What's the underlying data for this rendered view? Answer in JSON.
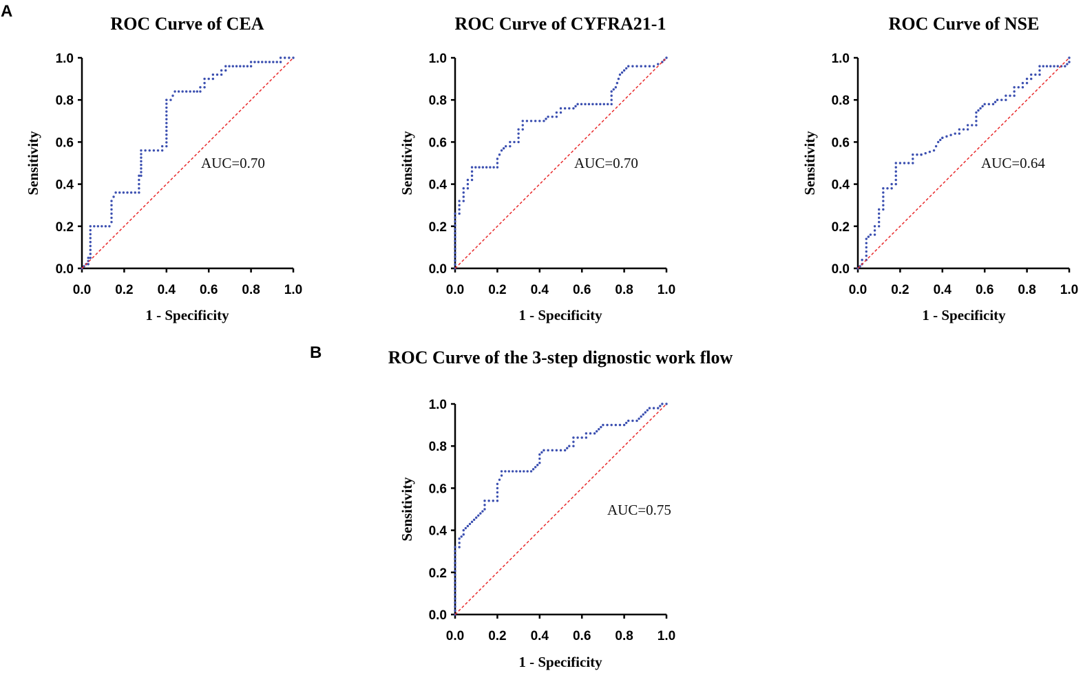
{
  "panels": {
    "a": "A",
    "b": "B"
  },
  "colors": {
    "roc": "#3b4fb0",
    "reference": "#e8282a",
    "axis": "#000000"
  },
  "chart_data": [
    {
      "type": "line",
      "panel": "A",
      "title": "ROC Curve of CEA",
      "xlabel": "1 - Specificity",
      "ylabel": "Sensitivity",
      "xlim": [
        0,
        1
      ],
      "ylim": [
        0,
        1
      ],
      "xticks": [
        "0.0",
        "0.2",
        "0.4",
        "0.6",
        "0.8",
        "1.0"
      ],
      "yticks": [
        "0.0",
        "0.2",
        "0.4",
        "0.6",
        "0.8",
        "1.0"
      ],
      "annotation": "AUC=0.70",
      "series": [
        {
          "name": "ROC",
          "style": "dotted",
          "x": [
            0,
            0.02,
            0.03,
            0.03,
            0.04,
            0.04,
            0.13,
            0.14,
            0.14,
            0.16,
            0.27,
            0.27,
            0.28,
            0.28,
            0.38,
            0.38,
            0.4,
            0.4,
            0.42,
            0.44,
            0.53,
            0.56,
            0.56,
            0.58,
            0.58,
            0.62,
            0.62,
            0.66,
            0.66,
            0.68,
            0.68,
            0.8,
            0.8,
            0.94,
            0.94,
            1.0
          ],
          "y": [
            0,
            0.02,
            0.02,
            0.05,
            0.05,
            0.2,
            0.2,
            0.22,
            0.32,
            0.36,
            0.36,
            0.44,
            0.44,
            0.56,
            0.56,
            0.58,
            0.58,
            0.8,
            0.8,
            0.84,
            0.84,
            0.84,
            0.86,
            0.86,
            0.9,
            0.9,
            0.92,
            0.92,
            0.94,
            0.94,
            0.96,
            0.96,
            0.98,
            0.98,
            1.0,
            1.0
          ]
        },
        {
          "name": "Reference",
          "style": "dashed",
          "x": [
            0,
            1
          ],
          "y": [
            0,
            1
          ]
        }
      ]
    },
    {
      "type": "line",
      "panel": "A",
      "title": "ROC Curve of CYFRA21-1",
      "xlabel": "1 - Specificity",
      "ylabel": "Sensitivity",
      "xlim": [
        0,
        1
      ],
      "ylim": [
        0,
        1
      ],
      "xticks": [
        "0.0",
        "0.2",
        "0.4",
        "0.6",
        "0.8",
        "1.0"
      ],
      "yticks": [
        "0.0",
        "0.2",
        "0.4",
        "0.6",
        "0.8",
        "1.0"
      ],
      "annotation": "AUC=0.70",
      "series": [
        {
          "name": "ROC",
          "style": "dotted",
          "x": [
            0,
            0,
            0.02,
            0.02,
            0.04,
            0.04,
            0.06,
            0.06,
            0.08,
            0.08,
            0.2,
            0.2,
            0.22,
            0.24,
            0.26,
            0.26,
            0.3,
            0.3,
            0.32,
            0.32,
            0.42,
            0.44,
            0.48,
            0.48,
            0.5,
            0.5,
            0.56,
            0.58,
            0.74,
            0.74,
            0.76,
            0.78,
            0.8,
            0.82,
            0.9,
            0.94,
            0.98,
            1.0
          ],
          "y": [
            0,
            0.26,
            0.26,
            0.32,
            0.32,
            0.38,
            0.38,
            0.42,
            0.42,
            0.48,
            0.48,
            0.52,
            0.56,
            0.58,
            0.58,
            0.6,
            0.6,
            0.66,
            0.66,
            0.7,
            0.7,
            0.72,
            0.72,
            0.74,
            0.74,
            0.76,
            0.76,
            0.78,
            0.78,
            0.84,
            0.86,
            0.92,
            0.94,
            0.96,
            0.96,
            0.96,
            0.98,
            1.0
          ]
        },
        {
          "name": "Reference",
          "style": "dashed",
          "x": [
            0,
            1
          ],
          "y": [
            0,
            1
          ]
        }
      ]
    },
    {
      "type": "line",
      "panel": "A",
      "title": "ROC Curve of NSE",
      "xlabel": "1 - Specificity",
      "ylabel": "Sensitivity",
      "xlim": [
        0,
        1
      ],
      "ylim": [
        0,
        1
      ],
      "xticks": [
        "0.0",
        "0.2",
        "0.4",
        "0.6",
        "0.8",
        "1.0"
      ],
      "yticks": [
        "0.0",
        "0.2",
        "0.4",
        "0.6",
        "0.8",
        "1.0"
      ],
      "annotation": "AUC=0.64",
      "series": [
        {
          "name": "ROC",
          "style": "dotted",
          "x": [
            0,
            0.02,
            0.02,
            0.04,
            0.04,
            0.06,
            0.08,
            0.08,
            0.1,
            0.1,
            0.12,
            0.12,
            0.16,
            0.16,
            0.18,
            0.18,
            0.26,
            0.26,
            0.3,
            0.3,
            0.36,
            0.38,
            0.4,
            0.4,
            0.46,
            0.48,
            0.48,
            0.52,
            0.52,
            0.56,
            0.56,
            0.58,
            0.6,
            0.64,
            0.66,
            0.7,
            0.7,
            0.74,
            0.74,
            0.78,
            0.78,
            0.8,
            0.8,
            0.82,
            0.82,
            0.86,
            0.86,
            0.98,
            1.0,
            1.0
          ],
          "y": [
            0,
            0.02,
            0.04,
            0.04,
            0.14,
            0.16,
            0.16,
            0.2,
            0.2,
            0.28,
            0.28,
            0.38,
            0.38,
            0.4,
            0.4,
            0.5,
            0.5,
            0.54,
            0.54,
            0.54,
            0.56,
            0.6,
            0.62,
            0.62,
            0.64,
            0.64,
            0.66,
            0.66,
            0.68,
            0.68,
            0.74,
            0.76,
            0.78,
            0.78,
            0.8,
            0.8,
            0.82,
            0.82,
            0.86,
            0.86,
            0.88,
            0.88,
            0.9,
            0.9,
            0.92,
            0.92,
            0.96,
            0.96,
            0.98,
            1.0
          ]
        },
        {
          "name": "Reference",
          "style": "dashed",
          "x": [
            0,
            1
          ],
          "y": [
            0,
            1
          ]
        }
      ]
    },
    {
      "type": "line",
      "panel": "B",
      "title": "ROC Curve of the 3-step dignostic work flow",
      "xlabel": "1 - Specificity",
      "ylabel": "Sensitivity",
      "xlim": [
        0,
        1
      ],
      "ylim": [
        0,
        1
      ],
      "xticks": [
        "0.0",
        "0.2",
        "0.4",
        "0.6",
        "0.8",
        "1.0"
      ],
      "yticks": [
        "0.0",
        "0.2",
        "0.4",
        "0.6",
        "0.8",
        "1.0"
      ],
      "annotation": "AUC=0.75",
      "series": [
        {
          "name": "ROC",
          "style": "dotted",
          "x": [
            0,
            0,
            0.02,
            0.02,
            0.04,
            0.04,
            0.06,
            0.08,
            0.1,
            0.12,
            0.14,
            0.14,
            0.2,
            0.2,
            0.22,
            0.22,
            0.36,
            0.38,
            0.4,
            0.4,
            0.42,
            0.52,
            0.54,
            0.56,
            0.56,
            0.62,
            0.62,
            0.66,
            0.68,
            0.7,
            0.8,
            0.82,
            0.86,
            0.88,
            0.9,
            0.92,
            0.96,
            0.98,
            1.0
          ],
          "y": [
            0,
            0.32,
            0.32,
            0.36,
            0.38,
            0.4,
            0.42,
            0.44,
            0.46,
            0.48,
            0.5,
            0.54,
            0.54,
            0.62,
            0.66,
            0.68,
            0.68,
            0.7,
            0.72,
            0.76,
            0.78,
            0.78,
            0.8,
            0.8,
            0.84,
            0.84,
            0.86,
            0.86,
            0.88,
            0.9,
            0.9,
            0.92,
            0.92,
            0.94,
            0.96,
            0.98,
            0.98,
            1.0,
            1.0
          ]
        },
        {
          "name": "Reference",
          "style": "dashed",
          "x": [
            0,
            1
          ],
          "y": [
            0,
            1
          ]
        }
      ]
    }
  ]
}
